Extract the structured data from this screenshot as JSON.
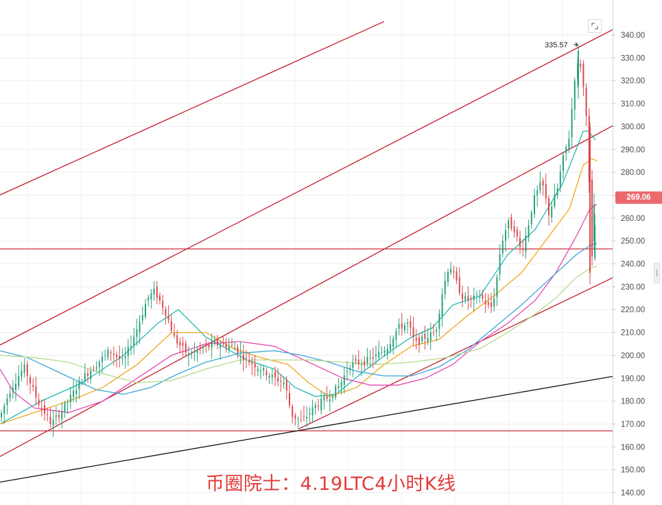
{
  "chart_data": {
    "type": "candlestick",
    "title": "币圈院士：4.19LTC4小时K线",
    "y_ticks": [
      "340.00",
      "330.00",
      "320.00",
      "310.00",
      "300.00",
      "290.00",
      "280.00",
      "270.00",
      "260.00",
      "250.00",
      "240.00",
      "230.00",
      "220.00",
      "210.00",
      "200.00",
      "190.00",
      "180.00",
      "170.00",
      "160.00",
      "150.00",
      "140.00"
    ],
    "ylim": [
      138,
      347
    ],
    "grid": true,
    "last_price": "269.06",
    "peak_label": "335.57",
    "peak_value": 335.57,
    "support_levels": [
      246.5,
      167
    ],
    "colors": {
      "up": "#27a17a",
      "down": "#d9474a",
      "price_badge": "#ea6a6e",
      "watermark": "#e33b3b",
      "trendline_red": "#c41a2a",
      "trendline_black": "#111111",
      "ma_teal": "#22b8b0",
      "ma_orange": "#f2a51a",
      "ma_pink": "#e649b4",
      "ma_blue": "#3aa5d6",
      "ma_lightgreen": "#b4d98c"
    },
    "trend_lines": [
      {
        "name": "channel-upper-1",
        "color": "red",
        "p1": [
          0,
          270.1
        ],
        "p2": [
          560,
          345.9
        ]
      },
      {
        "name": "channel-upper-2",
        "color": "red",
        "p1": [
          0,
          204.5
        ],
        "p2": [
          893,
          342.3
        ]
      },
      {
        "name": "channel-middle",
        "color": "red",
        "p1": [
          0,
          155.8
        ],
        "p2": [
          893,
          300.3
        ]
      },
      {
        "name": "channel-lower",
        "color": "red",
        "p1": [
          435,
          167.8
        ],
        "p2": [
          893,
          233.9
        ]
      },
      {
        "name": "long-term-support",
        "color": "black",
        "p1": [
          0,
          144.6
        ],
        "p2": [
          893,
          190.8
        ]
      }
    ],
    "price_path": [
      [
        0,
        173
      ],
      [
        15,
        185
      ],
      [
        35,
        195
      ],
      [
        55,
        180
      ],
      [
        75,
        170
      ],
      [
        95,
        178
      ],
      [
        120,
        190
      ],
      [
        140,
        196
      ],
      [
        160,
        202
      ],
      [
        180,
        197
      ],
      [
        200,
        212
      ],
      [
        215,
        225
      ],
      [
        225,
        228
      ],
      [
        240,
        220
      ],
      [
        255,
        207
      ],
      [
        275,
        200
      ],
      [
        295,
        203
      ],
      [
        315,
        205
      ],
      [
        340,
        204
      ],
      [
        360,
        198
      ],
      [
        380,
        194
      ],
      [
        400,
        190
      ],
      [
        415,
        188
      ],
      [
        425,
        174
      ],
      [
        440,
        171
      ],
      [
        460,
        178
      ],
      [
        480,
        182
      ],
      [
        495,
        187
      ],
      [
        510,
        196
      ],
      [
        530,
        197
      ],
      [
        550,
        200
      ],
      [
        565,
        204
      ],
      [
        580,
        212
      ],
      [
        595,
        214
      ],
      [
        605,
        205
      ],
      [
        620,
        208
      ],
      [
        635,
        210
      ],
      [
        645,
        228
      ],
      [
        655,
        240
      ],
      [
        665,
        232
      ],
      [
        675,
        225
      ],
      [
        685,
        224
      ],
      [
        700,
        226
      ],
      [
        715,
        220
      ],
      [
        722,
        228
      ],
      [
        730,
        248
      ],
      [
        740,
        258
      ],
      [
        750,
        255
      ],
      [
        760,
        245
      ],
      [
        768,
        254
      ],
      [
        778,
        268
      ],
      [
        790,
        276
      ],
      [
        800,
        262
      ],
      [
        812,
        272
      ],
      [
        820,
        285
      ],
      [
        830,
        296
      ],
      [
        838,
        322
      ],
      [
        845,
        330
      ],
      [
        850,
        318
      ],
      [
        857,
        300
      ],
      [
        860,
        258
      ],
      [
        863,
        242
      ],
      [
        867,
        256
      ],
      [
        870,
        269
      ]
    ],
    "moving_averages": [
      {
        "name": "MA-teal",
        "color": "ma_teal",
        "points": [
          [
            0,
            170
          ],
          [
            60,
            180
          ],
          [
            120,
            188
          ],
          [
            180,
            200
          ],
          [
            230,
            214
          ],
          [
            260,
            220
          ],
          [
            300,
            208
          ],
          [
            360,
            198
          ],
          [
            400,
            194
          ],
          [
            430,
            186
          ],
          [
            460,
            182
          ],
          [
            490,
            183
          ],
          [
            530,
            193
          ],
          [
            570,
            202
          ],
          [
            600,
            208
          ],
          [
            630,
            212
          ],
          [
            660,
            222
          ],
          [
            700,
            226
          ],
          [
            740,
            244
          ],
          [
            780,
            255
          ],
          [
            820,
            275
          ],
          [
            840,
            290
          ],
          [
            850,
            298
          ],
          [
            858,
            298
          ],
          [
            868,
            294
          ]
        ]
      },
      {
        "name": "MA-orange",
        "color": "ma_orange",
        "points": [
          [
            0,
            170
          ],
          [
            50,
            175
          ],
          [
            100,
            180
          ],
          [
            150,
            186
          ],
          [
            200,
            196
          ],
          [
            250,
            210
          ],
          [
            300,
            210
          ],
          [
            340,
            203
          ],
          [
            380,
            199
          ],
          [
            420,
            196
          ],
          [
            450,
            188
          ],
          [
            480,
            182
          ],
          [
            520,
            186
          ],
          [
            560,
            196
          ],
          [
            600,
            204
          ],
          [
            640,
            207
          ],
          [
            680,
            217
          ],
          [
            720,
            226
          ],
          [
            760,
            236
          ],
          [
            800,
            252
          ],
          [
            830,
            264
          ],
          [
            850,
            283
          ],
          [
            862,
            286
          ],
          [
            870,
            285
          ]
        ]
      },
      {
        "name": "MA-pink",
        "color": "ma_pink",
        "points": [
          [
            0,
            194
          ],
          [
            20,
            184
          ],
          [
            50,
            177
          ],
          [
            100,
            175
          ],
          [
            150,
            180
          ],
          [
            200,
            190
          ],
          [
            250,
            200
          ],
          [
            300,
            205
          ],
          [
            350,
            206
          ],
          [
            400,
            204
          ],
          [
            450,
            197
          ],
          [
            500,
            190
          ],
          [
            540,
            187
          ],
          [
            580,
            187
          ],
          [
            620,
            190
          ],
          [
            660,
            196
          ],
          [
            700,
            206
          ],
          [
            740,
            214
          ],
          [
            780,
            224
          ],
          [
            810,
            236
          ],
          [
            840,
            252
          ],
          [
            860,
            264
          ],
          [
            870,
            266
          ]
        ]
      },
      {
        "name": "MA-blue",
        "color": "ma_blue",
        "points": [
          [
            0,
            202
          ],
          [
            40,
            199
          ],
          [
            90,
            192
          ],
          [
            140,
            185
          ],
          [
            180,
            183
          ],
          [
            220,
            186
          ],
          [
            260,
            192
          ],
          [
            300,
            197
          ],
          [
            350,
            201
          ],
          [
            400,
            202
          ],
          [
            440,
            200
          ],
          [
            480,
            197
          ],
          [
            520,
            193
          ],
          [
            560,
            191
          ],
          [
            600,
            191
          ],
          [
            640,
            195
          ],
          [
            680,
            202
          ],
          [
            720,
            212
          ],
          [
            760,
            222
          ],
          [
            800,
            233
          ],
          [
            840,
            244
          ],
          [
            860,
            248
          ],
          [
            870,
            249
          ]
        ]
      },
      {
        "name": "MA-lightgreen",
        "color": "ma_lightgreen",
        "points": [
          [
            0,
            200
          ],
          [
            50,
            199
          ],
          [
            100,
            197
          ],
          [
            150,
            192
          ],
          [
            200,
            188
          ],
          [
            250,
            189
          ],
          [
            300,
            194
          ],
          [
            350,
            198
          ],
          [
            400,
            198
          ],
          [
            450,
            198
          ],
          [
            500,
            197
          ],
          [
            550,
            196
          ],
          [
            600,
            197
          ],
          [
            650,
            199
          ],
          [
            700,
            203
          ],
          [
            740,
            210
          ],
          [
            780,
            218
          ],
          [
            810,
            225
          ],
          [
            840,
            234
          ],
          [
            860,
            238
          ],
          [
            870,
            239
          ]
        ]
      }
    ]
  }
}
